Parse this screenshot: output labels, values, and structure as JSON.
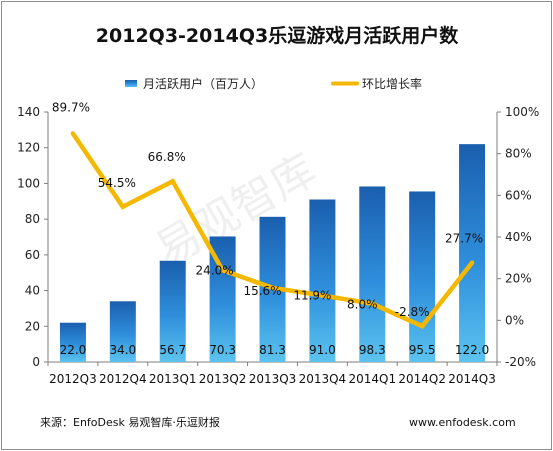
{
  "chart_data": {
    "type": "bar",
    "title": "2012Q3-2014Q3乐逗游戏月活跃用户数",
    "categories": [
      "2012Q3",
      "2012Q4",
      "2013Q1",
      "2013Q2",
      "2013Q3",
      "2013Q4",
      "2014Q1",
      "2014Q2",
      "2014Q3"
    ],
    "series": [
      {
        "name": "月活跃用户（百万人）",
        "type": "bar",
        "axis": "left",
        "values": [
          22.0,
          34.0,
          56.7,
          70.3,
          81.3,
          91.0,
          98.3,
          95.5,
          122.0
        ],
        "labels": [
          "22.0",
          "34.0",
          "56.7",
          "70.3",
          "81.3",
          "91.0",
          "98.3",
          "95.5",
          "122.0"
        ],
        "color": "#2a7fd4"
      },
      {
        "name": "环比增长率",
        "type": "line",
        "axis": "right",
        "values": [
          89.7,
          54.5,
          66.8,
          24.0,
          15.6,
          11.9,
          8.0,
          -2.8,
          27.7
        ],
        "labels": [
          "89.7%",
          "54.5%",
          "66.8%",
          "24.0%",
          "15.6%",
          "11.9%",
          "8.0%",
          "-2.8%",
          "27.7%"
        ],
        "color": "#f5b800"
      }
    ],
    "y_left": {
      "ylim": [
        0,
        140
      ],
      "ticks": [
        "0",
        "20",
        "40",
        "60",
        "80",
        "100",
        "120",
        "140"
      ]
    },
    "y_right": {
      "ylim": [
        -20,
        100
      ],
      "ticks": [
        "-20%",
        "0%",
        "20%",
        "40%",
        "60%",
        "80%",
        "100%"
      ]
    },
    "legend_position": "top",
    "grid": false
  },
  "footer": {
    "source": "来源：EnfoDesk 易观智库·乐逗财报",
    "website": "www.enfodesk.com"
  },
  "watermark": "易观智库"
}
